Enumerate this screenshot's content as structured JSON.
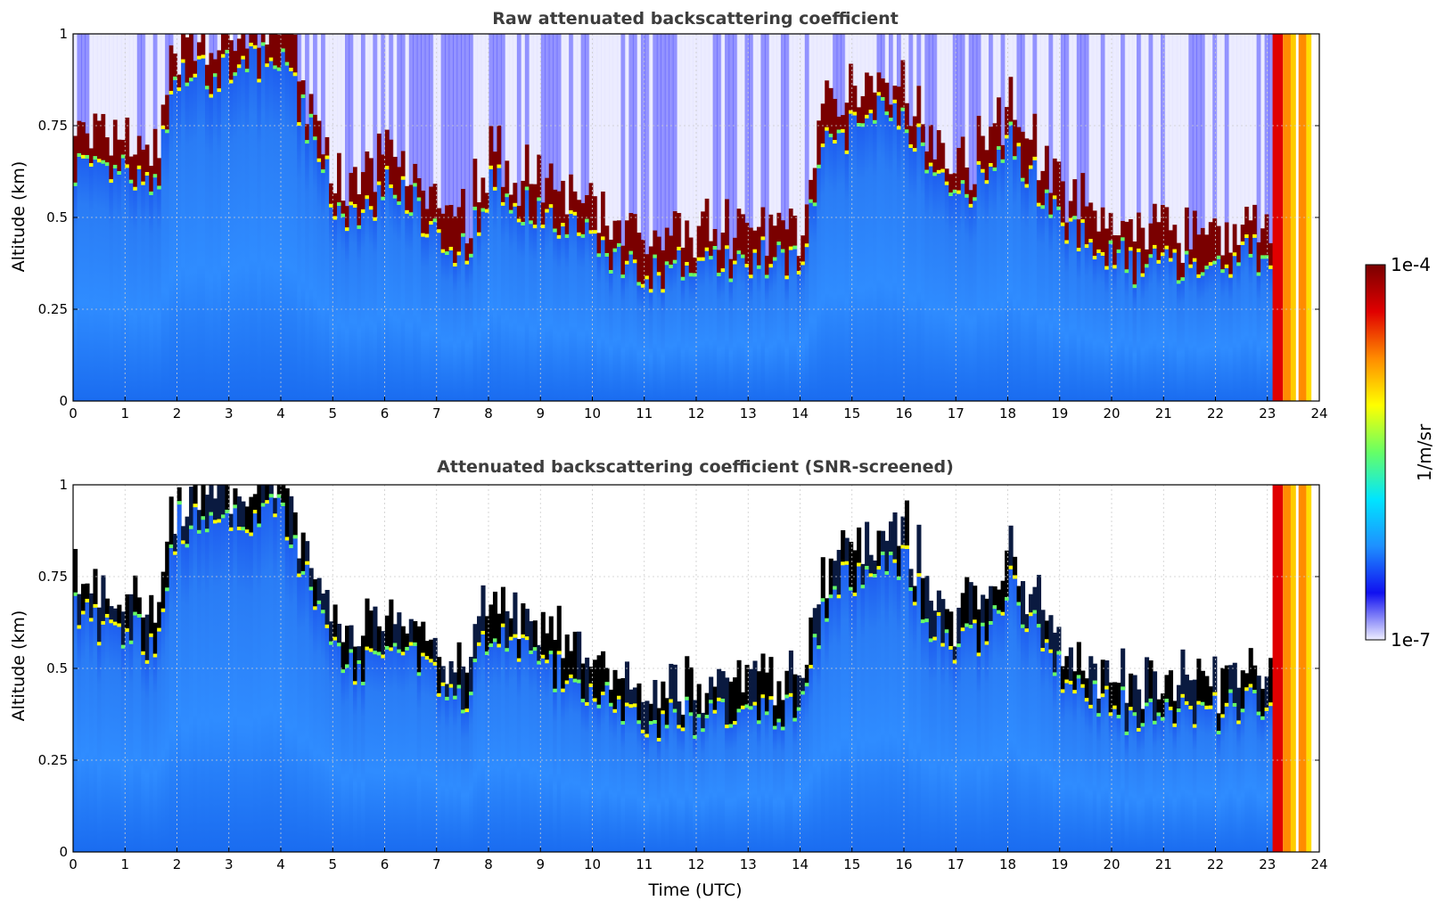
{
  "colormap": [
    "#ffffff",
    "#1010f0",
    "#1e90ff",
    "#00e5ff",
    "#66ff66",
    "#ffff00",
    "#ff8c00",
    "#e00000",
    "#7a0000"
  ],
  "chart_data": [
    {
      "type": "heatmap",
      "title": "Raw attenuated backscattering coefficient",
      "xlabel": "",
      "ylabel": "Altitude (km)",
      "xlim": [
        0,
        24
      ],
      "ylim": [
        0,
        1
      ],
      "xticks": [
        "0",
        "1",
        "2",
        "3",
        "4",
        "5",
        "6",
        "7",
        "8",
        "9",
        "10",
        "11",
        "12",
        "13",
        "14",
        "15",
        "16",
        "17",
        "18",
        "19",
        "20",
        "21",
        "22",
        "23",
        "24"
      ],
      "yticks": [
        "0",
        "0.25",
        "0.5",
        "0.75",
        "1"
      ],
      "grid": true,
      "screened": false,
      "cloud_base_km": [
        [
          0,
          0.65
        ],
        [
          0.5,
          0.6
        ],
        [
          1,
          0.62
        ],
        [
          1.5,
          0.55
        ],
        [
          2,
          0.9
        ],
        [
          2.5,
          0.88
        ],
        [
          3,
          0.9
        ],
        [
          4,
          0.93
        ],
        [
          5,
          0.55
        ],
        [
          5.5,
          0.48
        ],
        [
          6,
          0.6
        ],
        [
          6.5,
          0.55
        ],
        [
          7,
          0.45
        ],
        [
          7.5,
          0.4
        ],
        [
          8,
          0.6
        ],
        [
          8.5,
          0.55
        ],
        [
          9,
          0.5
        ],
        [
          9.5,
          0.48
        ],
        [
          10,
          0.45
        ],
        [
          10.5,
          0.38
        ],
        [
          11,
          0.33
        ],
        [
          11.5,
          0.36
        ],
        [
          12,
          0.37
        ],
        [
          12.5,
          0.38
        ],
        [
          13,
          0.38
        ],
        [
          13.5,
          0.39
        ],
        [
          14,
          0.4
        ],
        [
          14.5,
          0.7
        ],
        [
          15,
          0.75
        ],
        [
          15.5,
          0.82
        ],
        [
          16,
          0.78
        ],
        [
          16.5,
          0.62
        ],
        [
          17,
          0.56
        ],
        [
          17.5,
          0.6
        ],
        [
          18,
          0.72
        ],
        [
          18.5,
          0.6
        ],
        [
          19,
          0.5
        ],
        [
          19.5,
          0.44
        ],
        [
          20,
          0.4
        ],
        [
          20.5,
          0.36
        ],
        [
          21,
          0.38
        ],
        [
          21.5,
          0.38
        ],
        [
          22,
          0.37
        ],
        [
          22.5,
          0.4
        ],
        [
          23,
          0.4
        ]
      ]
    },
    {
      "type": "heatmap",
      "title": "Attenuated backscattering coefficient (SNR-screened)",
      "xlabel": "Time (UTC)",
      "ylabel": "Altitude (km)",
      "xlim": [
        0,
        24
      ],
      "ylim": [
        0,
        1
      ],
      "xticks": [
        "0",
        "1",
        "2",
        "3",
        "4",
        "5",
        "6",
        "7",
        "8",
        "9",
        "10",
        "11",
        "12",
        "13",
        "14",
        "15",
        "16",
        "17",
        "18",
        "19",
        "20",
        "21",
        "22",
        "23",
        "24"
      ],
      "yticks": [
        "0",
        "0.25",
        "0.5",
        "0.75",
        "1"
      ],
      "grid": true,
      "screened": true,
      "cloud_base_km": [
        [
          0,
          0.65
        ],
        [
          0.5,
          0.6
        ],
        [
          1,
          0.62
        ],
        [
          1.5,
          0.55
        ],
        [
          2,
          0.9
        ],
        [
          2.5,
          0.88
        ],
        [
          3,
          0.9
        ],
        [
          4,
          0.93
        ],
        [
          5,
          0.55
        ],
        [
          5.5,
          0.48
        ],
        [
          6,
          0.6
        ],
        [
          6.5,
          0.55
        ],
        [
          7,
          0.45
        ],
        [
          7.5,
          0.4
        ],
        [
          8,
          0.6
        ],
        [
          8.5,
          0.55
        ],
        [
          9,
          0.5
        ],
        [
          9.5,
          0.48
        ],
        [
          10,
          0.45
        ],
        [
          10.5,
          0.38
        ],
        [
          11,
          0.33
        ],
        [
          11.5,
          0.36
        ],
        [
          12,
          0.37
        ],
        [
          12.5,
          0.38
        ],
        [
          13,
          0.38
        ],
        [
          13.5,
          0.39
        ],
        [
          14,
          0.4
        ],
        [
          14.5,
          0.7
        ],
        [
          15,
          0.75
        ],
        [
          15.5,
          0.82
        ],
        [
          16,
          0.78
        ],
        [
          16.5,
          0.62
        ],
        [
          17,
          0.56
        ],
        [
          17.5,
          0.6
        ],
        [
          18,
          0.72
        ],
        [
          18.5,
          0.6
        ],
        [
          19,
          0.5
        ],
        [
          19.5,
          0.44
        ],
        [
          20,
          0.4
        ],
        [
          20.5,
          0.36
        ],
        [
          21,
          0.38
        ],
        [
          21.5,
          0.38
        ],
        [
          22,
          0.37
        ],
        [
          22.5,
          0.4
        ],
        [
          23,
          0.4
        ]
      ]
    }
  ],
  "colorbar": {
    "max_label": "1e-4",
    "min_label": "1e-7",
    "label": "1/m/sr"
  }
}
